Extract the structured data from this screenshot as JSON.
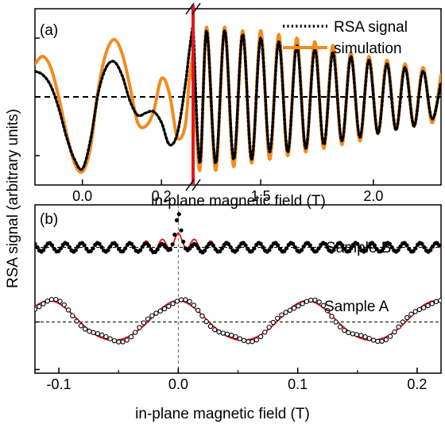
{
  "figure": {
    "y_label": "RSA signal (arbitrary units)",
    "colors": {
      "rsa": "#000000",
      "simulation": "#F28C1E",
      "fit": "#E8141A",
      "break_line": "#E8141A",
      "guide": "#000000"
    }
  },
  "chart_data": [
    {
      "panel": "(a)",
      "type": "line",
      "xlabel": "in-plane magnetic field (T)",
      "ylabel": "RSA signal (arbitrary units)",
      "x_break": {
        "left_range": [
          -0.12,
          0.28
        ],
        "right_range": [
          1.2,
          2.3
        ]
      },
      "x_ticks_left": [
        "0.0",
        "0.2"
      ],
      "x_tick_values_left": [
        0.0,
        0.2
      ],
      "x_ticks_right": [
        "1.5",
        "2.0"
      ],
      "x_tick_values_right": [
        1.5,
        2.0
      ],
      "ylim": [
        -1.2,
        1.2
      ],
      "legend": {
        "position": "top-right",
        "entries": [
          "RSA signal",
          "simulation"
        ]
      },
      "series": [
        {
          "name": "RSA signal",
          "style": "dotted",
          "points_left": [
            [
              -0.12,
              0.35
            ],
            [
              -0.1,
              0.3
            ],
            [
              -0.08,
              0.15
            ],
            [
              -0.06,
              -0.15
            ],
            [
              -0.04,
              -0.55
            ],
            [
              -0.02,
              -0.85
            ],
            [
              0.0,
              -0.98
            ],
            [
              0.02,
              -0.6
            ],
            [
              0.04,
              0.05
            ],
            [
              0.06,
              0.4
            ],
            [
              0.08,
              0.48
            ],
            [
              0.1,
              0.3
            ],
            [
              0.12,
              -0.05
            ],
            [
              0.14,
              -0.25
            ],
            [
              0.16,
              -0.22
            ],
            [
              0.18,
              -0.2
            ],
            [
              0.2,
              -0.35
            ],
            [
              0.22,
              -0.65
            ],
            [
              0.24,
              -0.5
            ],
            [
              0.26,
              0.15
            ],
            [
              0.27,
              0.6
            ],
            [
              0.28,
              1.0
            ]
          ],
          "points_right": [
            [
              1.2,
              1.0
            ],
            [
              1.23,
              -0.9
            ],
            [
              1.26,
              0.9
            ],
            [
              1.3,
              -0.9
            ],
            [
              1.34,
              0.9
            ],
            [
              1.38,
              -0.85
            ],
            [
              1.42,
              0.85
            ],
            [
              1.46,
              -0.85
            ],
            [
              1.5,
              0.8
            ],
            [
              1.54,
              -0.75
            ],
            [
              1.58,
              0.75
            ],
            [
              1.62,
              -0.75
            ],
            [
              1.66,
              0.7
            ],
            [
              1.7,
              -0.7
            ],
            [
              1.74,
              0.65
            ],
            [
              1.78,
              -0.65
            ],
            [
              1.82,
              0.6
            ],
            [
              1.86,
              -0.6
            ],
            [
              1.9,
              0.55
            ],
            [
              1.94,
              -0.55
            ],
            [
              1.98,
              0.5
            ],
            [
              2.02,
              -0.5
            ],
            [
              2.06,
              0.45
            ],
            [
              2.1,
              -0.45
            ],
            [
              2.14,
              0.4
            ],
            [
              2.18,
              -0.4
            ],
            [
              2.22,
              0.35
            ],
            [
              2.26,
              -0.3
            ],
            [
              2.3,
              0.2
            ]
          ]
        },
        {
          "name": "simulation",
          "style": "solid",
          "points_left": [
            [
              -0.12,
              0.45
            ],
            [
              -0.1,
              0.55
            ],
            [
              -0.08,
              0.4
            ],
            [
              -0.06,
              0.0
            ],
            [
              -0.04,
              -0.5
            ],
            [
              -0.02,
              -0.9
            ],
            [
              0.0,
              -1.02
            ],
            [
              0.02,
              -0.7
            ],
            [
              0.04,
              0.1
            ],
            [
              0.06,
              0.6
            ],
            [
              0.08,
              0.78
            ],
            [
              0.1,
              0.6
            ],
            [
              0.12,
              0.15
            ],
            [
              0.14,
              -0.35
            ],
            [
              0.16,
              -0.4
            ],
            [
              0.18,
              -0.2
            ],
            [
              0.2,
              0.25
            ],
            [
              0.22,
              0.05
            ],
            [
              0.24,
              -0.55
            ],
            [
              0.26,
              -0.4
            ],
            [
              0.27,
              0.2
            ],
            [
              0.28,
              0.6
            ]
          ],
          "points_right": [
            [
              1.2,
              0.55
            ],
            [
              1.23,
              -1.0
            ],
            [
              1.26,
              0.95
            ],
            [
              1.3,
              -1.0
            ],
            [
              1.34,
              0.95
            ],
            [
              1.38,
              -0.95
            ],
            [
              1.42,
              0.9
            ],
            [
              1.46,
              -0.9
            ],
            [
              1.5,
              0.9
            ],
            [
              1.54,
              -0.85
            ],
            [
              1.58,
              0.85
            ],
            [
              1.62,
              -0.8
            ],
            [
              1.66,
              0.8
            ],
            [
              1.7,
              -0.75
            ],
            [
              1.74,
              0.75
            ],
            [
              1.78,
              -0.7
            ],
            [
              1.82,
              0.7
            ],
            [
              1.86,
              -0.65
            ],
            [
              1.9,
              0.6
            ],
            [
              1.94,
              -0.6
            ],
            [
              1.98,
              0.55
            ],
            [
              2.02,
              -0.5
            ],
            [
              2.06,
              0.5
            ],
            [
              2.1,
              -0.45
            ],
            [
              2.14,
              0.45
            ],
            [
              2.18,
              -0.4
            ],
            [
              2.22,
              0.4
            ],
            [
              2.26,
              -0.35
            ],
            [
              2.3,
              0.3
            ]
          ]
        }
      ]
    },
    {
      "panel": "(b)",
      "type": "scatter",
      "xlabel": "in-plane magnetic field (T)",
      "xlim": [
        -0.12,
        0.22
      ],
      "x_ticks": [
        "-0.1",
        "0.0",
        "0.1",
        "0.2"
      ],
      "x_tick_values": [
        -0.1,
        0.0,
        0.1,
        0.2
      ],
      "ylim": [
        -1.0,
        1.3
      ],
      "annotations": [
        "Sample B",
        "Sample A"
      ],
      "series": [
        {
          "name": "Sample B",
          "offset": 0.72,
          "period": 0.0135,
          "amplitude": 0.06,
          "peak_at_zero": 0.52,
          "fit_from_x": -0.03
        },
        {
          "name": "Sample A",
          "offset": -0.3,
          "period": 0.108,
          "amplitude": 0.27,
          "data_markers": "open circles"
        }
      ]
    }
  ]
}
